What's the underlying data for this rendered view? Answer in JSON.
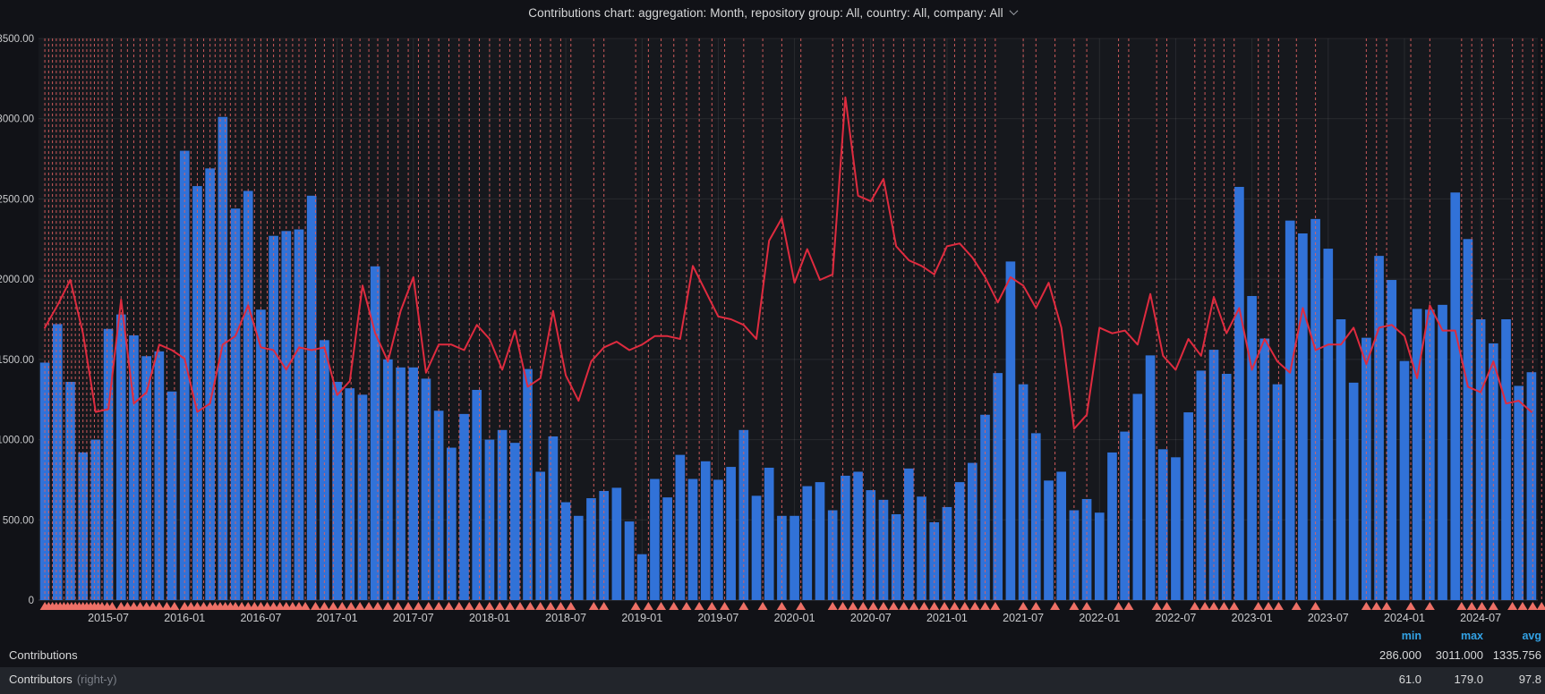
{
  "header": {
    "title": "Contributions chart: aggregation: Month, repository group: All, country: All, company: All",
    "icon": "chevron-down"
  },
  "colors": {
    "page_bg": "#111217",
    "plot_bg": "#16181d",
    "bar": "#3172d8",
    "line": "#df2b3f",
    "annotation": "#e06161",
    "annotation_marker": "#ed7066",
    "grid": "rgba(255,255,255,0.08)",
    "axis_text": "#c9cacc",
    "legend_header": "#33a2e5",
    "legend_text": "#d8d9da",
    "legend_row_highlight": "#22252b"
  },
  "chart_data": {
    "type": "bar+line",
    "title": "Contributions chart",
    "x": [
      "2015-02",
      "2015-03",
      "2015-04",
      "2015-05",
      "2015-06",
      "2015-07",
      "2015-08",
      "2015-09",
      "2015-10",
      "2015-11",
      "2015-12",
      "2016-01",
      "2016-02",
      "2016-03",
      "2016-04",
      "2016-05",
      "2016-06",
      "2016-07",
      "2016-08",
      "2016-09",
      "2016-10",
      "2016-11",
      "2016-12",
      "2017-01",
      "2017-02",
      "2017-03",
      "2017-04",
      "2017-05",
      "2017-06",
      "2017-07",
      "2017-08",
      "2017-09",
      "2017-10",
      "2017-11",
      "2017-12",
      "2018-01",
      "2018-02",
      "2018-03",
      "2018-04",
      "2018-05",
      "2018-06",
      "2018-07",
      "2018-08",
      "2018-09",
      "2018-10",
      "2018-11",
      "2018-12",
      "2019-01",
      "2019-02",
      "2019-03",
      "2019-04",
      "2019-05",
      "2019-06",
      "2019-07",
      "2019-08",
      "2019-09",
      "2019-10",
      "2019-11",
      "2019-12",
      "2020-01",
      "2020-02",
      "2020-03",
      "2020-04",
      "2020-05",
      "2020-06",
      "2020-07",
      "2020-08",
      "2020-09",
      "2020-10",
      "2020-11",
      "2020-12",
      "2021-01",
      "2021-02",
      "2021-03",
      "2021-04",
      "2021-05",
      "2021-06",
      "2021-07",
      "2021-08",
      "2021-09",
      "2021-10",
      "2021-11",
      "2021-12",
      "2022-01",
      "2022-02",
      "2022-03",
      "2022-04",
      "2022-05",
      "2022-06",
      "2022-07",
      "2022-08",
      "2022-09",
      "2022-10",
      "2022-11",
      "2022-12",
      "2023-01",
      "2023-02",
      "2023-03",
      "2023-04",
      "2023-05",
      "2023-06",
      "2023-07",
      "2023-08",
      "2023-09",
      "2023-10",
      "2023-11",
      "2023-12",
      "2024-01",
      "2024-02",
      "2024-03",
      "2024-04",
      "2024-05",
      "2024-06",
      "2024-07",
      "2024-08",
      "2024-09",
      "2024-10",
      "2024-11"
    ],
    "series": [
      {
        "name": "Contributions",
        "type": "bar",
        "axis": "left",
        "color": "#3172d8",
        "values": [
          1480,
          1720,
          1360,
          920,
          1000,
          1690,
          1780,
          1650,
          1520,
          1550,
          1300,
          2800,
          2580,
          2690,
          3011,
          2440,
          2550,
          1810,
          2270,
          2300,
          2310,
          2520,
          1620,
          1360,
          1320,
          1280,
          2080,
          1500,
          1450,
          1450,
          1380,
          1180,
          950,
          1160,
          1310,
          1000,
          1060,
          980,
          1440,
          800,
          1020,
          610,
          525,
          635,
          680,
          700,
          490,
          286,
          755,
          640,
          905,
          755,
          865,
          750,
          830,
          1060,
          650,
          825,
          525,
          525,
          710,
          735,
          560,
          775,
          800,
          685,
          625,
          535,
          820,
          645,
          485,
          580,
          735,
          855,
          1155,
          1415,
          2110,
          1345,
          1040,
          745,
          800,
          560,
          630,
          545,
          920,
          1050,
          1285,
          1525,
          940,
          890,
          1170,
          1430,
          1560,
          1410,
          2575,
          1895,
          1630,
          1345,
          2365,
          2285,
          2375,
          2190,
          1750,
          1355,
          1635,
          2145,
          1995,
          1490,
          1815,
          1810,
          1840,
          2540,
          2250,
          1750,
          1600,
          1750,
          1335,
          1420
        ]
      },
      {
        "name": "Contributors",
        "type": "line",
        "axis": "right",
        "color": "#df2b3f",
        "values": [
          97,
          105,
          114,
          95,
          67,
          68,
          107,
          70,
          74,
          91,
          89,
          86,
          67,
          70,
          91,
          94,
          105,
          90,
          89,
          82,
          90,
          89,
          90,
          73,
          78,
          112,
          95,
          85,
          103,
          115,
          81,
          91,
          91,
          89,
          98,
          93,
          82,
          96,
          76,
          79,
          103,
          80,
          71,
          85,
          90,
          92,
          89,
          91,
          94,
          94,
          93,
          119,
          110,
          101,
          100,
          98,
          93,
          128,
          136,
          113,
          125,
          114,
          116,
          179,
          144,
          142,
          150,
          126,
          121,
          119,
          116,
          126,
          127,
          122,
          115,
          106,
          115,
          112,
          104,
          113,
          97,
          61,
          66,
          97,
          95,
          96,
          91,
          109,
          87,
          82,
          93,
          87,
          108,
          95,
          104,
          82,
          93,
          85,
          81,
          104,
          89,
          91,
          91,
          97,
          84,
          97,
          98,
          94,
          79,
          105,
          96,
          96,
          76,
          74,
          85,
          70,
          71,
          67
        ]
      }
    ],
    "y_axis_left": {
      "min": 0,
      "max": 3500,
      "ticks": [
        {
          "v": 3500,
          "label": "3500.00"
        },
        {
          "v": 3000,
          "label": "3000.00"
        },
        {
          "v": 2500,
          "label": "2500.00"
        },
        {
          "v": 2000,
          "label": "2000.00"
        },
        {
          "v": 1500,
          "label": "1500.00"
        },
        {
          "v": 1000,
          "label": "1000.00"
        },
        {
          "v": 500,
          "label": "500.00"
        },
        {
          "v": 0,
          "label": "0"
        }
      ]
    },
    "y_axis_right": {
      "min": 0,
      "max": 200,
      "shown": false
    },
    "x_ticks": [
      {
        "idx": 5,
        "label": "2015-07"
      },
      {
        "idx": 11,
        "label": "2016-01"
      },
      {
        "idx": 17,
        "label": "2016-07"
      },
      {
        "idx": 23,
        "label": "2017-01"
      },
      {
        "idx": 29,
        "label": "2017-07"
      },
      {
        "idx": 35,
        "label": "2018-01"
      },
      {
        "idx": 41,
        "label": "2018-07"
      },
      {
        "idx": 47,
        "label": "2019-01"
      },
      {
        "idx": 53,
        "label": "2019-07"
      },
      {
        "idx": 59,
        "label": "2020-01"
      },
      {
        "idx": 65,
        "label": "2020-07"
      },
      {
        "idx": 71,
        "label": "2021-01"
      },
      {
        "idx": 77,
        "label": "2021-07"
      },
      {
        "idx": 83,
        "label": "2022-01"
      },
      {
        "idx": 89,
        "label": "2022-07"
      },
      {
        "idx": 95,
        "label": "2023-01"
      },
      {
        "idx": 101,
        "label": "2023-07"
      },
      {
        "idx": 107,
        "label": "2024-01"
      },
      {
        "idx": 113,
        "label": "2024-07"
      }
    ],
    "grid": true,
    "legend_position": "bottom-table",
    "annotations_month_idx": [
      0.0,
      0.3,
      0.6,
      0.9,
      1.2,
      1.5,
      1.8,
      2.1,
      2.4,
      2.7,
      3.0,
      3.3,
      3.6,
      3.9,
      4.2,
      4.5,
      4.9,
      5.3,
      6.0,
      6.5,
      7.0,
      7.5,
      8.0,
      8.5,
      9.0,
      9.6,
      10.2,
      11.0,
      11.5,
      12.0,
      12.5,
      13.0,
      13.4,
      13.8,
      14.2,
      14.6,
      15.0,
      15.5,
      16.0,
      16.5,
      17.0,
      17.5,
      18.0,
      18.5,
      19.0,
      19.5,
      20.0,
      20.5,
      21.3,
      22.0,
      22.7,
      23.4,
      24.1,
      24.8,
      25.5,
      26.2,
      27.0,
      27.8,
      28.6,
      29.4,
      30.2,
      31.0,
      31.8,
      32.6,
      33.4,
      34.2,
      35.0,
      35.8,
      36.6,
      37.4,
      38.2,
      39.0,
      39.8,
      40.6,
      41.4,
      43.2,
      44.0,
      46.5,
      47.5,
      48.5,
      49.5,
      50.5,
      51.5,
      52.5,
      53.5,
      55.0,
      56.5,
      58.0,
      59.5,
      62.0,
      62.8,
      63.6,
      64.4,
      65.2,
      66.0,
      66.8,
      67.6,
      68.4,
      69.2,
      70.0,
      70.8,
      71.6,
      72.4,
      73.2,
      74.0,
      74.8,
      77.0,
      78.0,
      79.5,
      81.0,
      82.0,
      84.5,
      85.3,
      87.5,
      88.3,
      90.5,
      91.3,
      92.0,
      92.8,
      93.6,
      95.5,
      96.3,
      97.1,
      98.5,
      100.0,
      104.0,
      104.8,
      105.6,
      107.5,
      109.0,
      111.5,
      112.3,
      113.1,
      114.0,
      115.5,
      116.3,
      117.1,
      117.8
    ]
  },
  "legend": {
    "columns": [
      "min",
      "max",
      "avg"
    ],
    "rows": [
      {
        "label": "Contributions",
        "suffix": "",
        "min": "286.000",
        "max": "3011.000",
        "avg": "1335.756"
      },
      {
        "label": "Contributors",
        "suffix": "(right-y)",
        "min": "61.0",
        "max": "179.0",
        "avg": "97.8"
      }
    ]
  }
}
